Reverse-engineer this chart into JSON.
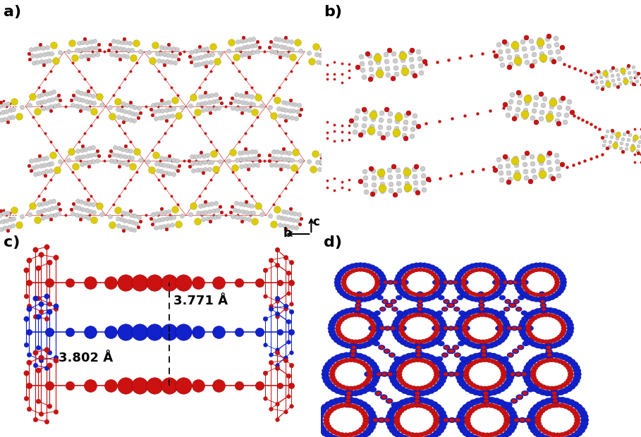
{
  "figure_width": 9.09,
  "figure_height": 6.2,
  "dpi": 100,
  "background_color": "#ffffff",
  "panel_label_fontsize": 16,
  "panel_label_fontweight": "bold",
  "panel_label_color": "#000000",
  "annotation_3771": "3.771 Å",
  "annotation_3802": "3.802 Å",
  "annotation_fontsize": 13,
  "axis_label_b": "b",
  "axis_label_c": "c",
  "axis_fontsize": 12,
  "red_color": "#cc1111",
  "blue_color": "#1122cc",
  "yellow_color": "#ddcc00",
  "gray_light": "#cccccc",
  "gray_mid": "#aaaaaa",
  "gray_dark": "#888888",
  "white": "#ffffff"
}
